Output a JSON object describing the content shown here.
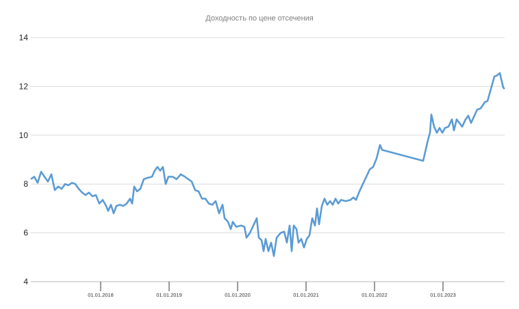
{
  "chart_data": {
    "type": "line",
    "title": "Доходность по цене отсечения",
    "xlabel": "",
    "ylabel": "",
    "ylim": [
      4,
      14
    ],
    "xlim": [
      2016.98,
      2023.9
    ],
    "yticks": [
      4,
      6,
      8,
      10,
      12,
      14
    ],
    "ytick_labels": [
      "4",
      "6",
      "8",
      "10",
      "12",
      "14"
    ],
    "xticks": [
      2018,
      2019,
      2020,
      2021,
      2022,
      2023
    ],
    "xtick_labels": [
      "01.01.2018",
      "01.01.2019",
      "01.01.2020",
      "01.01.2021",
      "01.01.2022",
      "01.01.2023"
    ],
    "grid": "horizontal",
    "legend": "none",
    "series_color": "#5b9bd5",
    "series": [
      {
        "name": "Доходность",
        "x": [
          2016.98,
          2017.03,
          2017.08,
          2017.13,
          2017.18,
          2017.23,
          2017.28,
          2017.33,
          2017.38,
          2017.43,
          2017.48,
          2017.53,
          2017.58,
          2017.63,
          2017.68,
          2017.73,
          2017.78,
          2017.83,
          2017.88,
          2017.93,
          2017.98,
          2018.03,
          2018.08,
          2018.11,
          2018.15,
          2018.19,
          2018.23,
          2018.28,
          2018.33,
          2018.38,
          2018.43,
          2018.46,
          2018.49,
          2018.53,
          2018.58,
          2018.63,
          2018.68,
          2018.75,
          2018.79,
          2018.83,
          2018.87,
          2018.91,
          2018.95,
          2018.99,
          2019.05,
          2019.11,
          2019.17,
          2019.23,
          2019.28,
          2019.33,
          2019.38,
          2019.43,
          2019.48,
          2019.53,
          2019.58,
          2019.63,
          2019.68,
          2019.73,
          2019.78,
          2019.81,
          2019.86,
          2019.9,
          2019.93,
          2019.98,
          2020.05,
          2020.1,
          2020.13,
          2020.18,
          2020.23,
          2020.28,
          2020.31,
          2020.35,
          2020.38,
          2020.41,
          2020.45,
          2020.49,
          2020.53,
          2020.57,
          2020.63,
          2020.68,
          2020.72,
          2020.76,
          2020.79,
          2020.82,
          2020.86,
          2020.89,
          2020.93,
          2020.97,
          2021.01,
          2021.05,
          2021.09,
          2021.13,
          2021.16,
          2021.19,
          2021.23,
          2021.27,
          2021.31,
          2021.35,
          2021.39,
          2021.43,
          2021.47,
          2021.51,
          2021.58,
          2021.65,
          2021.69,
          2021.73,
          2021.78,
          2021.83,
          2021.88,
          2021.93,
          2021.98,
          2022.03,
          2022.08,
          2022.11,
          2022.71,
          2022.78,
          2022.81,
          2022.83,
          2022.87,
          2022.91,
          2022.95,
          2022.99,
          2023.03,
          2023.08,
          2023.13,
          2023.16,
          2023.2,
          2023.24,
          2023.28,
          2023.33,
          2023.37,
          2023.41,
          2023.45,
          2023.5,
          2023.55,
          2023.61,
          2023.65,
          2023.7,
          2023.75,
          2023.79,
          2023.83,
          2023.88,
          2023.9
        ],
        "y": [
          8.2,
          8.3,
          8.05,
          8.5,
          8.3,
          8.1,
          8.4,
          7.75,
          7.9,
          7.8,
          8.0,
          7.95,
          8.05,
          8.0,
          7.8,
          7.65,
          7.55,
          7.65,
          7.5,
          7.55,
          7.2,
          7.35,
          7.1,
          6.9,
          7.15,
          6.8,
          7.1,
          7.15,
          7.1,
          7.2,
          7.4,
          7.2,
          7.9,
          7.7,
          7.8,
          8.2,
          8.25,
          8.3,
          8.55,
          8.7,
          8.55,
          8.7,
          8.0,
          8.3,
          8.3,
          8.2,
          8.4,
          8.3,
          8.2,
          8.1,
          7.75,
          7.7,
          7.4,
          7.4,
          7.2,
          7.15,
          7.3,
          6.8,
          7.15,
          6.6,
          6.45,
          6.15,
          6.45,
          6.25,
          6.3,
          6.25,
          5.8,
          6.0,
          6.3,
          6.6,
          5.8,
          5.7,
          5.25,
          5.75,
          5.25,
          5.6,
          5.05,
          5.8,
          6.0,
          6.05,
          5.6,
          6.3,
          5.25,
          6.3,
          6.15,
          5.6,
          5.75,
          5.4,
          5.75,
          5.9,
          6.6,
          6.3,
          7.0,
          6.35,
          7.1,
          7.4,
          7.15,
          7.3,
          7.15,
          7.4,
          7.2,
          7.35,
          7.3,
          7.35,
          7.45,
          7.35,
          7.7,
          8.0,
          8.3,
          8.6,
          8.7,
          9.05,
          9.6,
          9.4,
          8.95,
          9.8,
          10.1,
          10.85,
          10.35,
          10.1,
          10.3,
          10.1,
          10.3,
          10.35,
          10.65,
          10.2,
          10.65,
          10.5,
          10.35,
          10.65,
          10.8,
          10.5,
          10.75,
          11.05,
          11.1,
          11.35,
          11.4,
          11.9,
          12.4,
          12.45,
          12.55,
          11.95,
          11.9
        ]
      }
    ]
  }
}
